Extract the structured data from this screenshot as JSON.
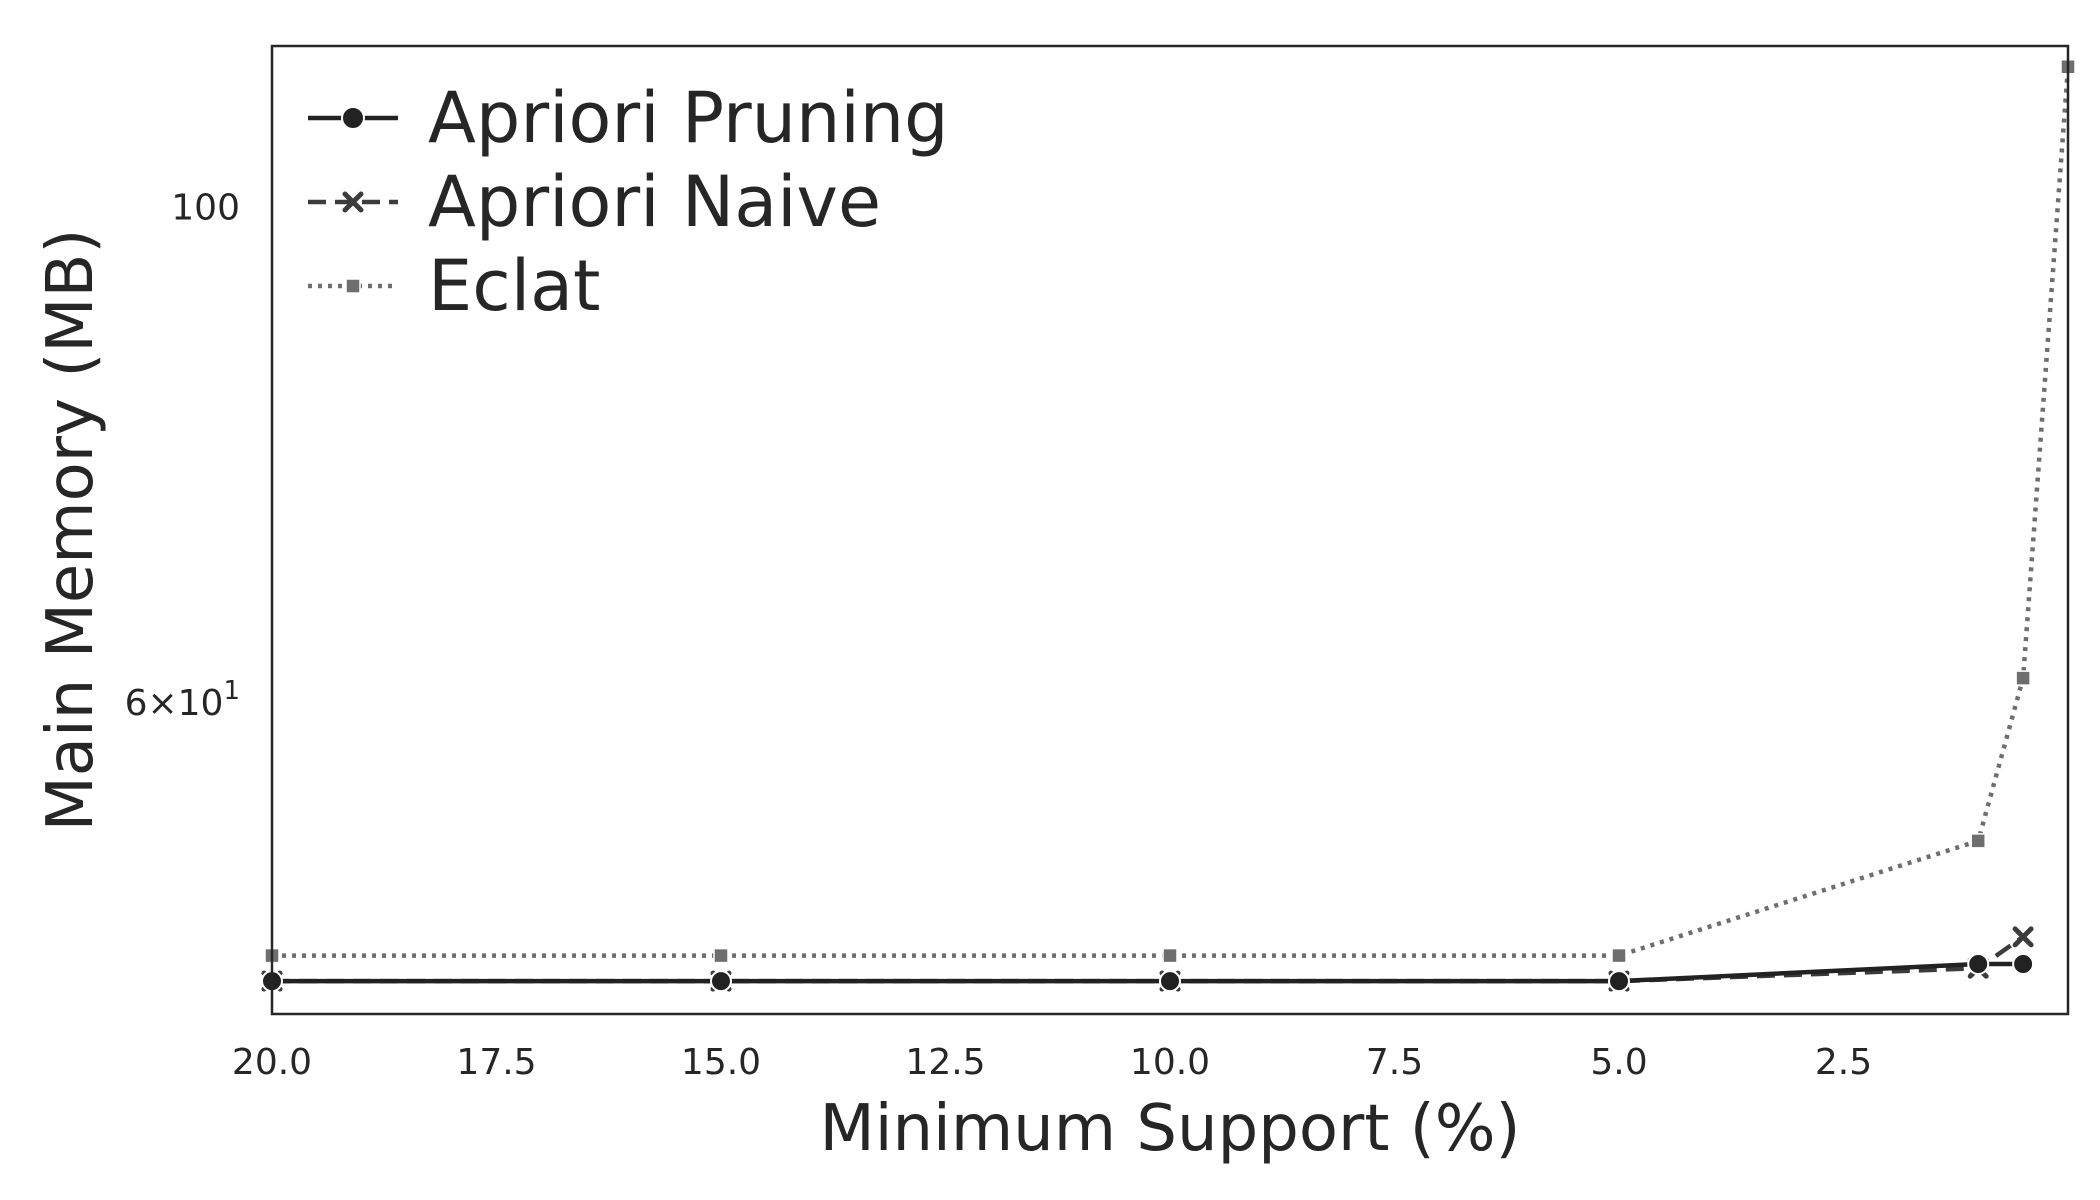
{
  "chart_data": {
    "type": "line",
    "xlabel": "Minimum Support (%)",
    "ylabel": "Main Memory (MB)",
    "x_ticks": [
      "20.0",
      "17.5",
      "15.0",
      "12.5",
      "10.0",
      "7.5",
      "5.0",
      "2.5"
    ],
    "y_ticks": [
      {
        "value": 100,
        "mantissa": "100",
        "exponent": ""
      },
      {
        "value": 60,
        "mantissa": "6×10",
        "exponent": "1"
      }
    ],
    "xlim": [
      20.0,
      0.0
    ],
    "ylim": [
      43.5,
      118
    ],
    "y_scale": "log",
    "x_inverted": true,
    "grid": false,
    "legend_position": "upper left",
    "series": [
      {
        "name": "Apriori Pruning",
        "color": "#222222",
        "dash": "solid",
        "marker": "circle",
        "x": [
          20.0,
          15.0,
          10.0,
          5.0,
          1.0,
          0.5
        ],
        "y": [
          45.0,
          45.0,
          45.0,
          45.0,
          45.8,
          45.8
        ]
      },
      {
        "name": "Apriori Naive",
        "color": "#3c3c3c",
        "dash": "dashed",
        "marker": "x",
        "x": [
          20.0,
          15.0,
          10.0,
          5.0,
          1.0,
          0.5
        ],
        "y": [
          45.0,
          45.0,
          45.0,
          45.0,
          45.6,
          47.1
        ]
      },
      {
        "name": "Eclat",
        "color": "#6e6e6e",
        "dash": "dotted",
        "marker": "square",
        "x": [
          20.0,
          15.0,
          10.0,
          5.0,
          1.0,
          0.5,
          0.0
        ],
        "y": [
          46.2,
          46.2,
          46.2,
          46.2,
          52.0,
          61.5,
          115.5
        ]
      }
    ]
  }
}
